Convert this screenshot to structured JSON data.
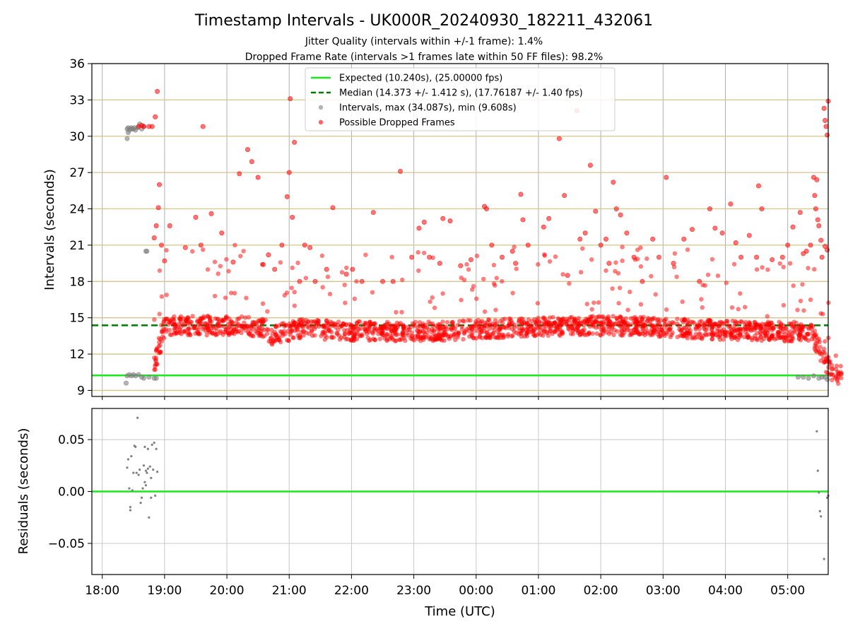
{
  "chart_data": [
    {
      "type": "scatter",
      "title": "Timestamp Intervals - UK000R_20240930_182211_432061",
      "subtitle_lines": [
        "Jitter Quality (intervals within +/-1 frame): 1.4%",
        "Dropped Frame Rate (intervals >1 frames late within 50 FF files): 98.2%"
      ],
      "xlabel": "",
      "ylabel": "Intervals (seconds)",
      "xlim": [
        "17:50",
        "05:39"
      ],
      "ylim": [
        8.5,
        36
      ],
      "yticks": [
        9,
        12,
        15,
        18,
        21,
        24,
        27,
        30,
        33,
        36
      ],
      "ytick_labels": [
        "9",
        "12",
        "15",
        "18",
        "21",
        "24",
        "27",
        "30",
        "33",
        "36"
      ],
      "xticks": [
        "18:00",
        "19:00",
        "20:00",
        "21:00",
        "22:00",
        "23:00",
        "00:00",
        "01:00",
        "02:00",
        "03:00",
        "04:00",
        "05:00"
      ],
      "grid": "on (vertical gray at ticks, horizontal goldenrod at ticks)",
      "legend_position": "upper center",
      "reference_lines": [
        {
          "name": "Expected (10.240s), (25.00000 fps)",
          "y": 10.24,
          "style": "solid",
          "color": "#1aea1a"
        },
        {
          "name": "Median (14.373 +/- 1.412 s), (17.76187 +/- 1.40 fps)",
          "y": 14.373,
          "style": "dashed",
          "color": "#007a00"
        }
      ],
      "series": [
        {
          "name": "Intervals, max (34.087s), min (9.608s)",
          "color": "#808080",
          "points": [
            [
              "18:24",
              30.6
            ],
            [
              "18:25",
              30.7
            ],
            [
              "18:26",
              30.5
            ],
            [
              "18:27",
              30.6
            ],
            [
              "18:28",
              30.7
            ],
            [
              "18:29",
              30.6
            ],
            [
              "18:30",
              30.6
            ],
            [
              "18:31",
              30.7
            ],
            [
              "18:32",
              30.5
            ],
            [
              "18:34",
              30.7
            ],
            [
              "18:36",
              31.0
            ],
            [
              "18:38",
              30.6
            ],
            [
              "18:40",
              30.8
            ],
            [
              "18:24",
              29.8
            ],
            [
              "18:25",
              30.3
            ],
            [
              "18:42",
              20.5
            ],
            [
              "18:43",
              20.5
            ],
            [
              "18:23",
              9.6
            ],
            [
              "18:24",
              10.2
            ],
            [
              "18:26",
              10.3
            ],
            [
              "18:28",
              10.2
            ],
            [
              "18:30",
              10.3
            ],
            [
              "18:32",
              10.2
            ],
            [
              "18:35",
              10.3
            ],
            [
              "18:38",
              10.1
            ],
            [
              "18:40",
              10.0
            ],
            [
              "18:45",
              10.1
            ],
            [
              "18:50",
              10.0
            ],
            [
              "18:52",
              10.0
            ],
            [
              "05:10",
              10.1
            ],
            [
              "05:15",
              10.1
            ],
            [
              "05:20",
              10.0
            ],
            [
              "05:25",
              10.2
            ],
            [
              "05:30",
              10.0
            ],
            [
              "05:33",
              10.1
            ],
            [
              "05:36",
              10.1
            ],
            [
              "05:38",
              9.9
            ]
          ]
        },
        {
          "name": "Possible Dropped Frames",
          "color": "#ff0000",
          "points": [
            [
              "18:35",
              30.8
            ],
            [
              "18:38",
              30.9
            ],
            [
              "18:40",
              30.8
            ],
            [
              "18:45",
              30.8
            ],
            [
              "18:48",
              30.8
            ],
            [
              "18:53",
              33.7
            ],
            [
              "18:51",
              31.6
            ],
            [
              "18:55",
              26.0
            ],
            [
              "18:54",
              24.1
            ],
            [
              "18:50",
              21.6
            ],
            [
              "18:52",
              22.6
            ],
            [
              "18:57",
              21.0
            ],
            [
              "19:05",
              22.6
            ],
            [
              "19:00",
              19.7
            ],
            [
              "19:20",
              20.8
            ],
            [
              "19:30",
              23.3
            ],
            [
              "19:35",
              21.0
            ],
            [
              "19:37",
              30.8
            ],
            [
              "19:45",
              23.6
            ],
            [
              "19:55",
              22.0
            ],
            [
              "20:06",
              19.6
            ],
            [
              "20:12",
              26.9
            ],
            [
              "20:20",
              28.9
            ],
            [
              "20:24",
              27.9
            ],
            [
              "20:30",
              26.6
            ],
            [
              "20:35",
              19.4
            ],
            [
              "20:40",
              20.2
            ],
            [
              "20:46",
              19.0
            ],
            [
              "20:53",
              21.0
            ],
            [
              "20:58",
              25.0
            ],
            [
              "21:00",
              27.0
            ],
            [
              "21:01",
              33.1
            ],
            [
              "21:03",
              23.3
            ],
            [
              "21:05",
              29.5
            ],
            [
              "21:10",
              18.0
            ],
            [
              "21:15",
              21.0
            ],
            [
              "21:20",
              20.8
            ],
            [
              "21:25",
              18.0
            ],
            [
              "21:36",
              19.0
            ],
            [
              "21:42",
              24.1
            ],
            [
              "21:55",
              18.6
            ],
            [
              "22:01",
              19.0
            ],
            [
              "22:10",
              18.0
            ],
            [
              "22:21",
              23.7
            ],
            [
              "22:30",
              18.0
            ],
            [
              "22:40",
              18.0
            ],
            [
              "22:47",
              27.1
            ],
            [
              "22:58",
              20.0
            ],
            [
              "23:05",
              22.4
            ],
            [
              "23:10",
              22.9
            ],
            [
              "23:15",
              20.0
            ],
            [
              "23:25",
              19.5
            ],
            [
              "23:28",
              23.2
            ],
            [
              "23:35",
              23.0
            ],
            [
              "23:45",
              19.3
            ],
            [
              "23:55",
              19.8
            ],
            [
              "00:08",
              24.2
            ],
            [
              "00:10",
              24.0
            ],
            [
              "00:15",
              21.0
            ],
            [
              "00:25",
              20.0
            ],
            [
              "00:35",
              20.5
            ],
            [
              "00:38",
              19.5
            ],
            [
              "00:43",
              25.2
            ],
            [
              "00:45",
              23.1
            ],
            [
              "00:50",
              21.0
            ],
            [
              "01:05",
              22.5
            ],
            [
              "01:10",
              23.2
            ],
            [
              "01:20",
              29.8
            ],
            [
              "01:25",
              25.1
            ],
            [
              "01:28",
              18.5
            ],
            [
              "01:37",
              32.1
            ],
            [
              "01:40",
              21.5
            ],
            [
              "01:45",
              22.0
            ],
            [
              "01:50",
              27.6
            ],
            [
              "01:55",
              23.8
            ],
            [
              "02:00",
              21.0
            ],
            [
              "02:05",
              21.5
            ],
            [
              "02:08",
              19.5
            ],
            [
              "02:12",
              26.2
            ],
            [
              "02:15",
              24.0
            ],
            [
              "02:19",
              23.5
            ],
            [
              "02:25",
              22.0
            ],
            [
              "02:32",
              20.0
            ],
            [
              "02:40",
              18.0
            ],
            [
              "02:50",
              21.5
            ],
            [
              "02:56",
              20.0
            ],
            [
              "03:03",
              26.6
            ],
            [
              "03:10",
              19.5
            ],
            [
              "03:20",
              21.5
            ],
            [
              "03:28",
              22.3
            ],
            [
              "03:35",
              18.0
            ],
            [
              "03:45",
              24.0
            ],
            [
              "03:50",
              22.4
            ],
            [
              "03:57",
              22.0
            ],
            [
              "04:05",
              24.4
            ],
            [
              "04:10",
              21.2
            ],
            [
              "04:15",
              20.0
            ],
            [
              "04:23",
              21.8
            ],
            [
              "04:30",
              20.0
            ],
            [
              "04:32",
              25.9
            ],
            [
              "04:35",
              24.0
            ],
            [
              "04:45",
              19.8
            ],
            [
              "04:55",
              20.0
            ],
            [
              "05:00",
              21.0
            ],
            [
              "05:05",
              22.5
            ],
            [
              "05:12",
              23.7
            ],
            [
              "05:15",
              20.3
            ],
            [
              "05:18",
              20.5
            ],
            [
              "05:22",
              21.0
            ],
            [
              "05:25",
              26.6
            ],
            [
              "05:26",
              25.1
            ],
            [
              "05:27",
              24.0
            ],
            [
              "05:28",
              26.4
            ],
            [
              "05:29",
              23.1
            ],
            [
              "05:30",
              22.6
            ],
            [
              "05:32",
              21.4
            ],
            [
              "05:33",
              20.0
            ],
            [
              "05:35",
              32.3
            ],
            [
              "05:36",
              31.3
            ],
            [
              "05:37",
              30.8
            ],
            [
              "05:38",
              30.1
            ],
            [
              "05:38",
              20.6
            ],
            [
              "05:36",
              20.9
            ],
            [
              "05:39",
              32.9
            ]
          ]
        }
      ]
    },
    {
      "type": "scatter",
      "title": "",
      "xlabel": "Time (UTC)",
      "ylabel": "Residuals (seconds)",
      "xlim": [
        "17:50",
        "05:39"
      ],
      "ylim": [
        -0.08,
        0.08
      ],
      "yticks": [
        0.05,
        0.0,
        -0.05
      ],
      "ytick_labels": [
        "0.05",
        "0.00",
        "−0.05"
      ],
      "xticks": [
        "18:00",
        "19:00",
        "20:00",
        "21:00",
        "22:00",
        "23:00",
        "00:00",
        "01:00",
        "02:00",
        "03:00",
        "04:00",
        "05:00"
      ],
      "grid": "on",
      "reference_lines": [
        {
          "name": "",
          "y": 0.0,
          "style": "solid",
          "color": "#1aea1a"
        }
      ],
      "series": [
        {
          "name": "",
          "color": "#808080",
          "points": [
            [
              "18:24",
              0.023
            ],
            [
              "18:25",
              0.031
            ],
            [
              "18:26",
              0.003
            ],
            [
              "18:27",
              -0.015
            ],
            [
              "18:27",
              -0.018
            ],
            [
              "18:28",
              0.034
            ],
            [
              "18:29",
              0.001
            ],
            [
              "18:30",
              0.018
            ],
            [
              "18:31",
              0.044
            ],
            [
              "18:32",
              0.043
            ],
            [
              "18:33",
              0.018
            ],
            [
              "18:34",
              0.071
            ],
            [
              "18:35",
              0.016
            ],
            [
              "18:36",
              0.021
            ],
            [
              "18:37",
              -0.011
            ],
            [
              "18:38",
              -0.006
            ],
            [
              "18:39",
              0.003
            ],
            [
              "18:40",
              0.025
            ],
            [
              "18:41",
              0.043
            ],
            [
              "18:42",
              0.006
            ],
            [
              "18:43",
              0.018
            ],
            [
              "18:44",
              0.041
            ],
            [
              "18:45",
              -0.025
            ],
            [
              "18:46",
              0.024
            ],
            [
              "18:47",
              0.013
            ],
            [
              "18:48",
              0.045
            ],
            [
              "18:49",
              0.021
            ],
            [
              "18:50",
              0.047
            ],
            [
              "18:51",
              -0.004
            ],
            [
              "18:52",
              0.041
            ],
            [
              "18:53",
              0.019
            ],
            [
              "18:41",
              0.009
            ],
            [
              "18:42",
              0.02
            ],
            [
              "18:44",
              0.022
            ],
            [
              "18:47",
              -0.006
            ],
            [
              "05:28",
              0.058
            ],
            [
              "05:29",
              0.02
            ],
            [
              "05:30",
              -0.001
            ],
            [
              "05:31",
              -0.019
            ],
            [
              "05:32",
              -0.024
            ],
            [
              "05:35",
              -0.065
            ],
            [
              "05:38",
              -0.006
            ],
            [
              "05:39",
              -0.004
            ]
          ]
        }
      ]
    }
  ]
}
